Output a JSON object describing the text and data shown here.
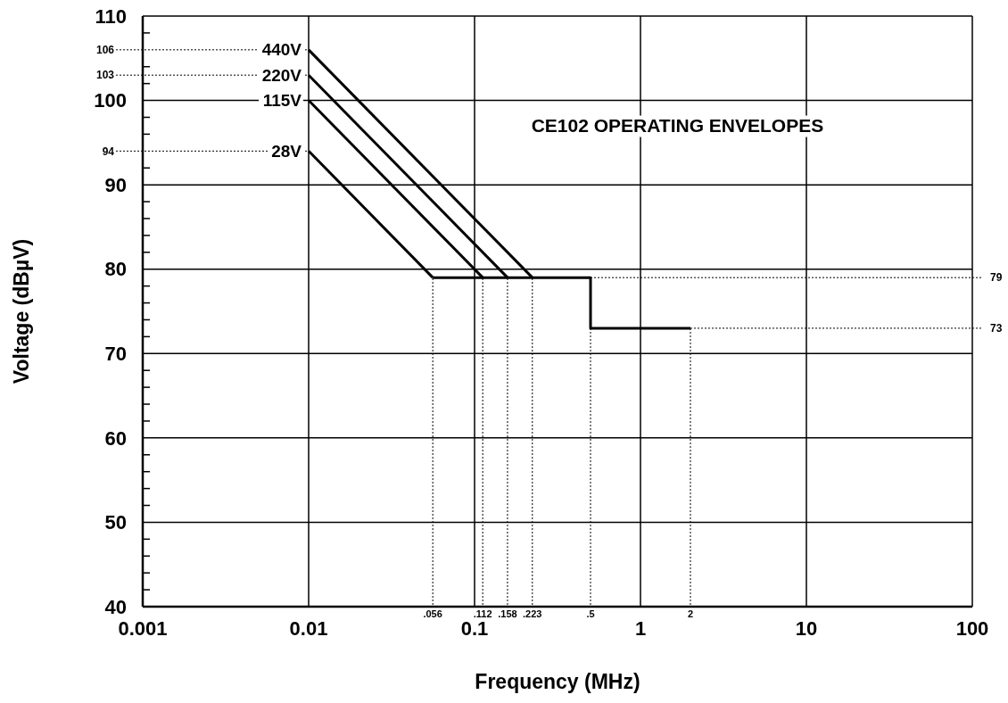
{
  "chart_data": {
    "type": "line",
    "title": "CE102 OPERATING ENVELOPES",
    "xlabel": "Frequency (MHz)",
    "ylabel": "Voltage (dBµV)",
    "log": "x",
    "grid": true,
    "legend": false,
    "xlim": [
      0.001,
      100
    ],
    "ylim": [
      40,
      110
    ],
    "xticks": [
      0.001,
      0.01,
      0.1,
      1,
      10,
      100
    ],
    "yticks": [
      40,
      50,
      60,
      70,
      80,
      90,
      100,
      110,
      {
        "value": 42,
        "label": null
      },
      {
        "value": 44,
        "label": null
      },
      {
        "value": 46,
        "label": null
      },
      {
        "value": 48,
        "label": null
      },
      {
        "value": 52,
        "label": null
      },
      {
        "value": 54,
        "label": null
      },
      {
        "value": 56,
        "label": null
      },
      {
        "value": 58,
        "label": null
      },
      {
        "value": 62,
        "label": null
      },
      {
        "value": 64,
        "label": null
      },
      {
        "value": 66,
        "label": null
      },
      {
        "value": 68,
        "label": null
      },
      {
        "value": 72,
        "label": null
      },
      {
        "value": 74,
        "label": null
      },
      {
        "value": 76,
        "label": null
      },
      {
        "value": 78,
        "label": null
      },
      {
        "value": 82,
        "label": null
      },
      {
        "value": 84,
        "label": null
      },
      {
        "value": 86,
        "label": null
      },
      {
        "value": 88,
        "label": null
      },
      {
        "value": 92,
        "label": null
      },
      {
        "value": 96,
        "label": null
      },
      {
        "value": 98,
        "label": null
      },
      {
        "value": 102,
        "label": null
      },
      {
        "value": 104,
        "label": null
      },
      {
        "value": 108,
        "label": null
      }
    ],
    "annotations": [
      {
        "text": "106",
        "x": 0.01,
        "y": 106
      },
      {
        "text": "103",
        "x": 0.01,
        "y": 103
      },
      {
        "text": "94",
        "x": 0.01,
        "y": 94
      },
      {
        "text": ".056",
        "x": 0.056
      },
      {
        "text": ".112",
        "x": 0.112
      },
      {
        "text": ".158",
        "x": 0.158
      },
      {
        "text": ".223",
        "x": 0.223
      },
      {
        "text": ".5",
        "x": 0.5
      },
      {
        "text": "2",
        "x": 2
      },
      {
        "text": "79",
        "x": 0.5,
        "y": 79
      },
      {
        "text": "73",
        "x": 2,
        "y": 73
      }
    ],
    "series": [
      {
        "name": "440V",
        "color": "#000000",
        "x": [
          0.01,
          0.223
        ],
        "values": [
          106,
          79
        ]
      },
      {
        "name": "220V",
        "color": "#000000",
        "x": [
          0.01,
          0.158
        ],
        "values": [
          103,
          79
        ]
      },
      {
        "name": "115V",
        "color": "#000000",
        "x": [
          0.01,
          0.112
        ],
        "values": [
          100,
          79
        ]
      },
      {
        "name": "28V",
        "color": "#000000",
        "x": [
          0.01,
          0.056
        ],
        "values": [
          94,
          79
        ]
      },
      {
        "color": "#000000",
        "x": [
          0.056,
          0.5,
          0.5,
          2
        ],
        "values": [
          79,
          79,
          73,
          73
        ]
      }
    ]
  }
}
